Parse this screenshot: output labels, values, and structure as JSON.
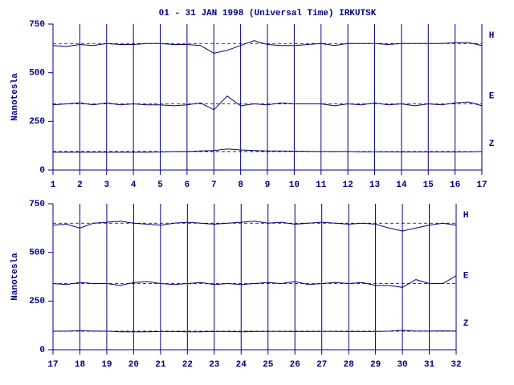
{
  "chart_data": [
    {
      "type": "line",
      "title": "01 - 31 JAN 1998 (Universal Time) IRKUTSK",
      "y_label": "Nanotesla",
      "x": [
        1,
        1.5,
        2,
        2.5,
        3,
        3.5,
        4,
        4.5,
        5,
        5.5,
        6,
        6.5,
        7,
        7.5,
        8,
        8.5,
        9,
        9.5,
        10,
        10.5,
        11,
        11.5,
        12,
        12.5,
        13,
        13.5,
        14,
        14.5,
        15,
        15.5,
        16,
        16.5,
        17
      ],
      "xlim": [
        1,
        17
      ],
      "xticks": [
        1,
        2,
        3,
        4,
        5,
        6,
        7,
        8,
        9,
        10,
        11,
        12,
        13,
        14,
        15,
        16,
        17
      ],
      "ylim": [
        0,
        750
      ],
      "yticks": [
        0,
        250,
        500,
        750
      ],
      "grid": true,
      "series": [
        {
          "name": "H",
          "color": "#000080",
          "baseline": 650,
          "values": [
            640,
            635,
            645,
            640,
            650,
            645,
            645,
            650,
            650,
            645,
            645,
            640,
            600,
            615,
            640,
            665,
            645,
            640,
            640,
            645,
            650,
            640,
            650,
            650,
            650,
            645,
            650,
            650,
            650,
            650,
            655,
            655,
            640
          ]
        },
        {
          "name": "E",
          "color": "#000080",
          "baseline": 340,
          "values": [
            335,
            340,
            345,
            335,
            345,
            335,
            340,
            335,
            335,
            330,
            335,
            345,
            310,
            380,
            330,
            340,
            335,
            345,
            340,
            340,
            340,
            330,
            340,
            335,
            345,
            335,
            340,
            330,
            340,
            335,
            345,
            350,
            330
          ]
        },
        {
          "name": "Z",
          "color": "#000080",
          "baseline": 95,
          "values": [
            92,
            92,
            92,
            92,
            92,
            92,
            92,
            92,
            93,
            95,
            95,
            98,
            100,
            108,
            103,
            100,
            98,
            98,
            97,
            96,
            95,
            95,
            95,
            94,
            94,
            94,
            93,
            93,
            93,
            93,
            93,
            94,
            95
          ]
        }
      ]
    },
    {
      "type": "line",
      "y_label": "Nanotesla",
      "x": [
        17,
        17.5,
        18,
        18.5,
        19,
        19.5,
        20,
        20.5,
        21,
        21.5,
        22,
        22.5,
        23,
        23.5,
        24,
        24.5,
        25,
        25.5,
        26,
        26.5,
        27,
        27.5,
        28,
        28.5,
        29,
        29.5,
        30,
        30.5,
        31,
        31.5,
        32
      ],
      "xlim": [
        17,
        32
      ],
      "xticks": [
        17,
        18,
        19,
        20,
        21,
        22,
        23,
        24,
        25,
        26,
        27,
        28,
        29,
        30,
        31,
        32
      ],
      "ylim": [
        0,
        750
      ],
      "yticks": [
        0,
        250,
        500,
        750
      ],
      "grid": true,
      "series": [
        {
          "name": "H",
          "color": "#000080",
          "baseline": 650,
          "values": [
            640,
            645,
            625,
            650,
            655,
            660,
            650,
            645,
            640,
            650,
            655,
            650,
            645,
            650,
            655,
            660,
            650,
            655,
            645,
            650,
            655,
            650,
            645,
            650,
            645,
            625,
            610,
            625,
            640,
            650,
            640
          ]
        },
        {
          "name": "E",
          "color": "#000080",
          "baseline": 340,
          "values": [
            340,
            335,
            345,
            340,
            340,
            330,
            345,
            350,
            340,
            335,
            340,
            345,
            335,
            340,
            335,
            340,
            345,
            340,
            350,
            335,
            340,
            345,
            340,
            345,
            330,
            330,
            320,
            360,
            340,
            340,
            380
          ]
        },
        {
          "name": "Z",
          "color": "#000080",
          "baseline": 95,
          "values": [
            95,
            95,
            98,
            96,
            95,
            92,
            92,
            92,
            93,
            93,
            92,
            92,
            93,
            93,
            92,
            93,
            94,
            94,
            93,
            93,
            94,
            94,
            93,
            93,
            93,
            95,
            100,
            96,
            96,
            97,
            96
          ]
        }
      ]
    }
  ]
}
